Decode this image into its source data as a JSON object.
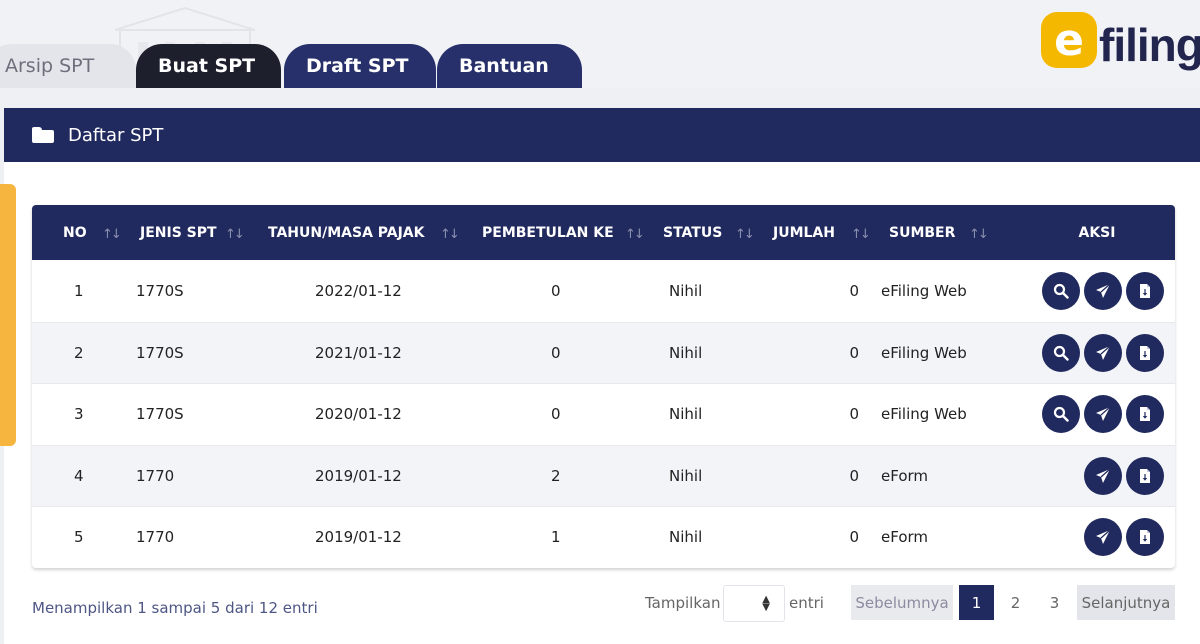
{
  "tabs": [
    {
      "label": "Arsip SPT"
    },
    {
      "label": "Buat SPT"
    },
    {
      "label": "Draft SPT"
    },
    {
      "label": "Bantuan"
    }
  ],
  "logo": {
    "mark": "e",
    "text": "filing",
    "color": "#f5b800"
  },
  "panel": {
    "title": "Daftar SPT",
    "icon": "folder-icon"
  },
  "table": {
    "columns": [
      "NO",
      "JENIS SPT",
      "TAHUN/MASA PAJAK",
      "PEMBETULAN KE",
      "STATUS",
      "JUMLAH",
      "SUMBER",
      "AKSI"
    ],
    "sort_icon": "↑↓",
    "rows": [
      {
        "no": "1",
        "jenis": "1770S",
        "tahun": "2022/01-12",
        "pembetulan": "0",
        "status": "Nihil",
        "jumlah": "0",
        "sumber": "eFiling Web",
        "actions": [
          "search-icon",
          "send-icon",
          "document-icon"
        ]
      },
      {
        "no": "2",
        "jenis": "1770S",
        "tahun": "2021/01-12",
        "pembetulan": "0",
        "status": "Nihil",
        "jumlah": "0",
        "sumber": "eFiling Web",
        "actions": [
          "search-icon",
          "send-icon",
          "document-icon"
        ]
      },
      {
        "no": "3",
        "jenis": "1770S",
        "tahun": "2020/01-12",
        "pembetulan": "0",
        "status": "Nihil",
        "jumlah": "0",
        "sumber": "eFiling Web",
        "actions": [
          "search-icon",
          "send-icon",
          "document-icon"
        ]
      },
      {
        "no": "4",
        "jenis": "1770",
        "tahun": "2019/01-12",
        "pembetulan": "2",
        "status": "Nihil",
        "jumlah": "0",
        "sumber": "eForm",
        "actions": [
          "send-icon",
          "document-icon"
        ]
      },
      {
        "no": "5",
        "jenis": "1770",
        "tahun": "2019/01-12",
        "pembetulan": "1",
        "status": "Nihil",
        "jumlah": "0",
        "sumber": "eForm",
        "actions": [
          "send-icon",
          "document-icon"
        ]
      }
    ]
  },
  "footer": {
    "info": "Menampilkan 1 sampai 5 dari 12 entri",
    "show_label": "Tampilkan",
    "entries_label": "entri",
    "prev": "Sebelumnya",
    "pages": [
      "1",
      "2",
      "3"
    ],
    "next": "Selanjutnya"
  },
  "colors": {
    "navy": "#212a5e",
    "accent": "#f5b53f"
  }
}
